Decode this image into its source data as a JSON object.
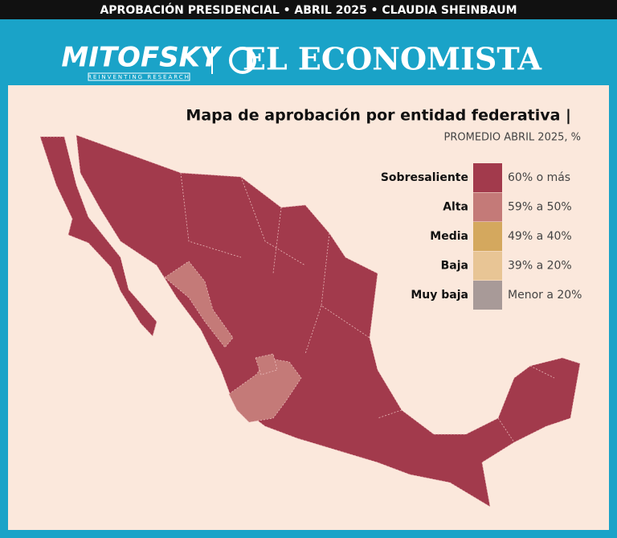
{
  "header": {
    "banner": "APROBACIÓN PRESIDENCIAL • ABRIL 2025 • CLAUDIA SHEINBAUM",
    "logo_left": "MITOFSKY",
    "logo_left_tagline": "REINVENTING RESEARCH",
    "logo_right": "EL ECONOMISTA"
  },
  "map": {
    "title": "Mapa de aprobación por entidad federativa |",
    "subtitle": "PROMEDIO ABRIL 2025, %",
    "legend": [
      {
        "name": "Sobresaliente",
        "range": "60% o más",
        "color": "#a23a4c"
      },
      {
        "name": "Alta",
        "range": "59% a 50%",
        "color": "#c47a78"
      },
      {
        "name": "Media",
        "range": "49% a 40%",
        "color": "#d4a85e"
      },
      {
        "name": "Baja",
        "range": "39% a 20%",
        "color": "#e8c595"
      },
      {
        "name": "Muy baja",
        "range": "Menor a 20%",
        "color": "#a89a98"
      }
    ]
  }
}
